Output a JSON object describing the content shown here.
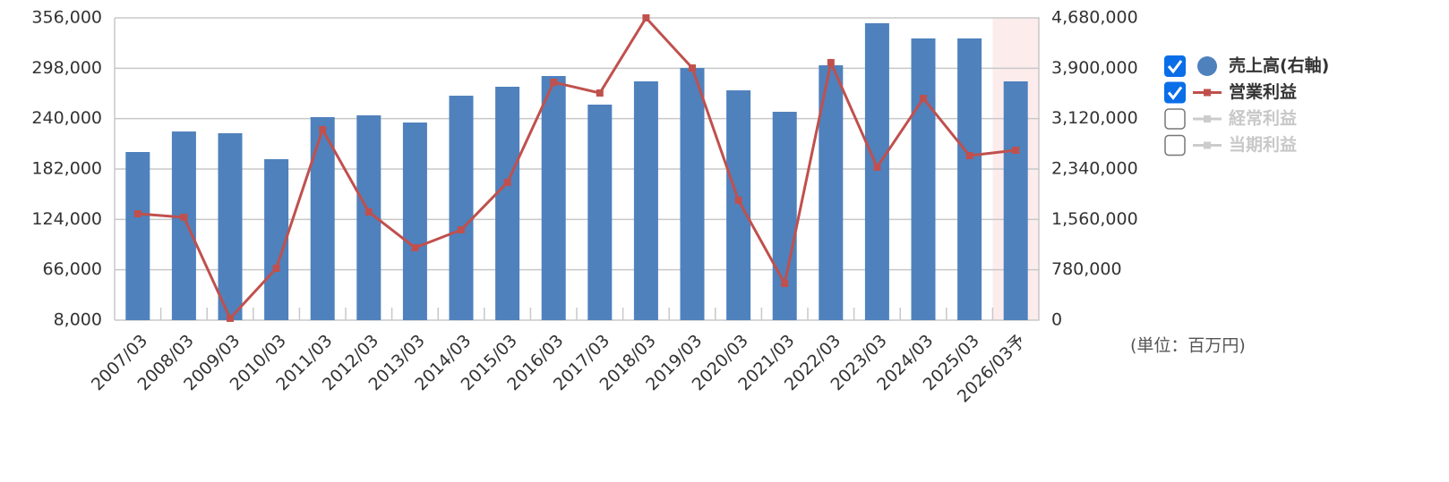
{
  "chart_data": {
    "type": "bar-line",
    "categories": [
      "2007/03",
      "2008/03",
      "2009/03",
      "2010/03",
      "2011/03",
      "2012/03",
      "2013/03",
      "2014/03",
      "2015/03",
      "2016/03",
      "2017/03",
      "2018/03",
      "2019/03",
      "2020/03",
      "2021/03",
      "2022/03",
      "2023/03",
      "2024/03",
      "2025/03",
      "2026/03予"
    ],
    "series": [
      {
        "name": "売上高(右軸)",
        "type": "bar",
        "axis": "y2",
        "color": "#4f81bd",
        "checked": true,
        "values": [
          2603000,
          2921000,
          2894000,
          2492000,
          3143000,
          3171000,
          3060000,
          3475000,
          3614000,
          3780000,
          3337000,
          3697000,
          3905000,
          3558000,
          3226000,
          3946000,
          4597000,
          4362000,
          4362000,
          3697000
        ]
      },
      {
        "name": "営業利益",
        "type": "line",
        "axis": "y",
        "color": "#c0504d",
        "checked": true,
        "values": [
          130500,
          126400,
          10100,
          67700,
          227300,
          132600,
          91400,
          112000,
          166600,
          281900,
          269500,
          356000,
          298300,
          146000,
          50200,
          304500,
          184100,
          263300,
          197400,
          203600
        ]
      },
      {
        "name": "経常利益",
        "type": "line",
        "color": "#cccccc",
        "checked": false
      },
      {
        "name": "当期利益",
        "type": "line",
        "color": "#cccccc",
        "checked": false
      }
    ],
    "ylim": [
      8000,
      356000
    ],
    "yticks": [
      {
        "value": 8000,
        "label": "8,000"
      },
      {
        "value": 66000,
        "label": "66,000"
      },
      {
        "value": 124000,
        "label": "124,000"
      },
      {
        "value": 182000,
        "label": "182,000"
      },
      {
        "value": 240000,
        "label": "240,000"
      },
      {
        "value": 298000,
        "label": "298,000"
      },
      {
        "value": 356000,
        "label": "356,000"
      }
    ],
    "y2lim": [
      0,
      4680000
    ],
    "y2ticks": [
      0,
      {
        "value": 780000,
        "label": "780,000"
      },
      {
        "value": 1560000,
        "label": "1,560,000"
      },
      {
        "value": 2340000,
        "label": "2,340,000"
      },
      {
        "value": 3120000,
        "label": "3,120,000"
      },
      {
        "value": 3900000,
        "label": "3,900,000"
      },
      {
        "value": 4680000,
        "label": "4,680,000"
      }
    ],
    "grid": true,
    "highlight_last": true,
    "unit_note": "(単位：百万円)"
  }
}
